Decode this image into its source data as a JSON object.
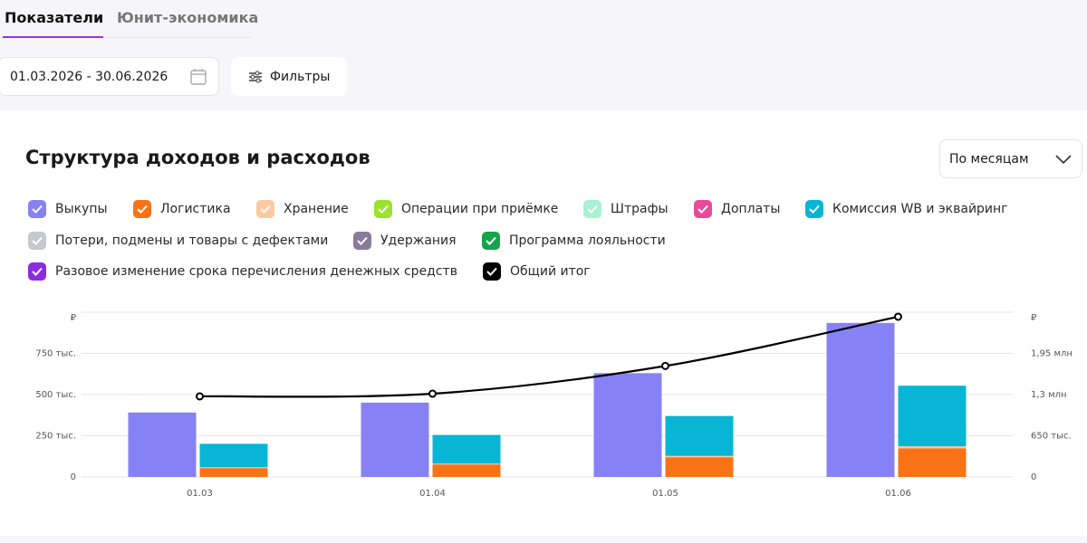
{
  "tabs": [
    "Показатели",
    "Юнит-экономика"
  ],
  "active_tab": 0,
  "date_range": "01.03.2026 - 30.06.2026",
  "filters_button": "Фильтры",
  "period_select": "По месяцам",
  "chart_data": {
    "type": "bar",
    "title": "Структура доходов и расходов",
    "categories": [
      "01.03",
      "01.04",
      "01.05",
      "01.06"
    ],
    "y_unit": "₽",
    "y2_unit": "₽",
    "ylim": [
      0,
      1000000
    ],
    "yticks": [
      0,
      {
        "value": 250000,
        "label": "250 тыс."
      },
      {
        "value": 500000,
        "label": "500 тыс."
      },
      {
        "value": 750000,
        "label": "750 тыс."
      }
    ],
    "y2lim": [
      0,
      2600000
    ],
    "y2ticks": [
      0,
      {
        "value": 650000,
        "label": "650 тыс."
      },
      {
        "value": 1300000,
        "label": "1,3 млн"
      },
      {
        "value": 1950000,
        "label": "1,95 млн"
      }
    ],
    "grid": true,
    "series": [
      {
        "name": "Выкупы",
        "color": "#8682f6",
        "values": [
          391000,
          451000,
          630000,
          935000
        ]
      },
      {
        "name": "Логистика",
        "color": "#f97316",
        "values": [
          54000,
          76000,
          120000,
          174000
        ]
      },
      {
        "name": "Хранение",
        "color": "#fcc9a0",
        "values": [
          5000,
          5000,
          8000,
          12000
        ]
      },
      {
        "name": "Операции при приёмке",
        "color": "#9be22d",
        "values": [
          0,
          0,
          0,
          0
        ]
      },
      {
        "name": "Штрафы",
        "color": "#a7f3d0",
        "values": [
          0,
          0,
          0,
          0
        ]
      },
      {
        "name": "Доплаты",
        "color": "#ec4899",
        "values": [
          0,
          0,
          0,
          0
        ]
      },
      {
        "name": "Комиссия WB и эквайринг",
        "color": "#06b6d4",
        "values": [
          142000,
          174000,
          242000,
          368000
        ]
      },
      {
        "name": "Потери, подмены и товары с дефектами",
        "color": "#c7c7cf",
        "values": [
          0,
          0,
          0,
          0
        ]
      },
      {
        "name": "Удержания",
        "color": "#8a7b9c",
        "values": [
          0,
          0,
          0,
          0
        ]
      },
      {
        "name": "Программа лояльности",
        "color": "#16a34a",
        "values": [
          0,
          0,
          0,
          0
        ]
      },
      {
        "name": "Разовое изменение срока перечисления денежных средств",
        "color": "#8b2be2",
        "values": [
          0,
          0,
          0,
          0
        ]
      },
      {
        "name": "Общий итог",
        "color": "#000000",
        "type": "line",
        "axis": "y2",
        "values": [
          1272000,
          1314000,
          1752000,
          2529000
        ]
      }
    ]
  }
}
